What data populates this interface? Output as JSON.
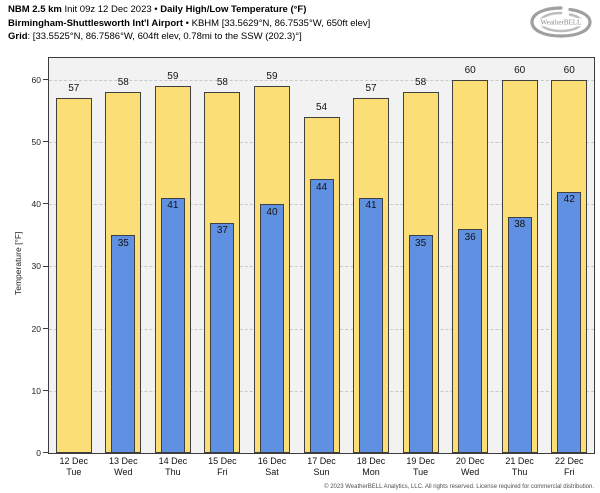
{
  "header": {
    "line1": {
      "product": "NBM 2.5 km",
      "init": " Init 09z 12 Dec 2023 ",
      "sep": "• ",
      "title": "Daily High/Low Temperature (°F)"
    },
    "line2": {
      "station": "Birmingham-Shuttlesworth Int'l Airport",
      "sep": " • ",
      "details": "KBHM [33.5629°N, 86.7535°W, 650ft elev]"
    },
    "line3": {
      "label": "Grid",
      "details": ": [33.5525°N, 86.7586°W, 604ft elev, 0.78mi to the SSW (202.3)°]"
    }
  },
  "logo": {
    "brand": "WeatherBELL"
  },
  "chart_data": {
    "type": "bar",
    "title": "Daily High/Low Temperature (°F)",
    "ylabel": "Temperature [°F]",
    "ylim": [
      0,
      63.5
    ],
    "yticks": [
      0,
      10,
      20,
      30,
      40,
      50,
      60
    ],
    "grid": "horizontal-dashed",
    "legend_position": "none",
    "categories": [
      {
        "date": "12 Dec",
        "day": "Tue"
      },
      {
        "date": "13 Dec",
        "day": "Wed"
      },
      {
        "date": "14 Dec",
        "day": "Thu"
      },
      {
        "date": "15 Dec",
        "day": "Fri"
      },
      {
        "date": "16 Dec",
        "day": "Sat"
      },
      {
        "date": "17 Dec",
        "day": "Sun"
      },
      {
        "date": "18 Dec",
        "day": "Mon"
      },
      {
        "date": "19 Dec",
        "day": "Tue"
      },
      {
        "date": "20 Dec",
        "day": "Wed"
      },
      {
        "date": "21 Dec",
        "day": "Thu"
      },
      {
        "date": "22 Dec",
        "day": "Fri"
      }
    ],
    "series": [
      {
        "name": "Daily High",
        "color": "#FBDF76",
        "values": [
          57,
          58,
          59,
          58,
          59,
          54,
          57,
          58,
          60,
          60,
          60
        ]
      },
      {
        "name": "Daily Low",
        "color": "#5F90E2",
        "values": [
          null,
          35,
          41,
          37,
          40,
          44,
          41,
          35,
          36,
          38,
          42
        ]
      }
    ]
  },
  "colors": {
    "plot_bg": "#F2F2F2",
    "gridline": "#C9C9C9",
    "bar_border": "#404040",
    "axis": "#3C3C3C",
    "high_fill": "#FBDF76",
    "low_fill": "#5F90E2"
  },
  "footer": {
    "copyright": "© 2023 WeatherBELL Analytics, LLC. All rights reserved. License required for commercial distribution."
  }
}
